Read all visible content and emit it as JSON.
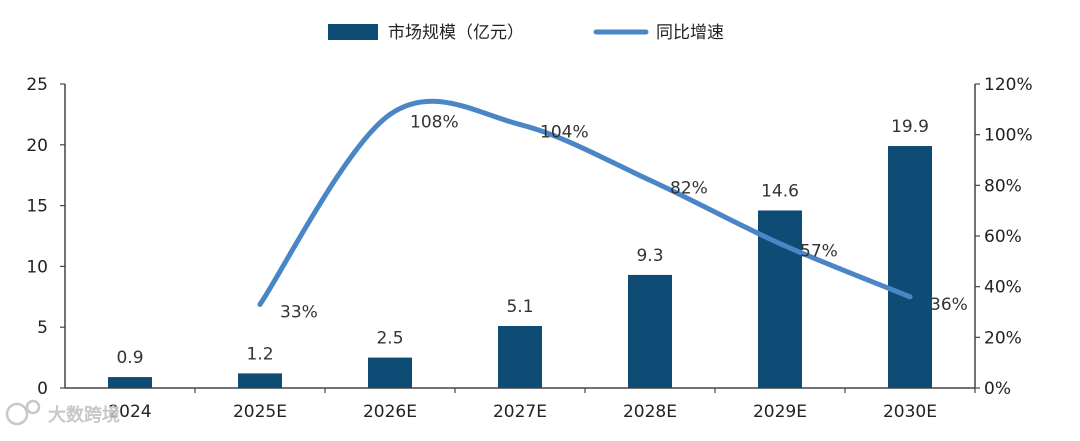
{
  "chart_data": {
    "type": "bar+line",
    "categories": [
      "2024",
      "2025E",
      "2026E",
      "2027E",
      "2028E",
      "2029E",
      "2030E"
    ],
    "series": [
      {
        "name": "市场规模（亿元）",
        "kind": "bar",
        "axis": "left",
        "values": [
          0.9,
          1.2,
          2.5,
          5.1,
          9.3,
          14.6,
          19.9
        ],
        "labels": [
          "0.9",
          "1.2",
          "2.5",
          "5.1",
          "9.3",
          "14.6",
          "19.9"
        ],
        "color": "#0f4c75"
      },
      {
        "name": "同比增速",
        "kind": "line",
        "axis": "right",
        "values": [
          null,
          33,
          108,
          104,
          82,
          57,
          36
        ],
        "labels": [
          "",
          "33%",
          "108%",
          "104%",
          "82%",
          "57%",
          "36%"
        ],
        "color": "#4a86c5"
      }
    ],
    "left_axis": {
      "ylim": [
        0,
        25
      ],
      "ticks": [
        0,
        5,
        10,
        15,
        20,
        25
      ],
      "tick_labels": [
        "0",
        "5",
        "10",
        "15",
        "20",
        "25"
      ]
    },
    "right_axis": {
      "ylim": [
        0,
        120
      ],
      "ticks": [
        0,
        20,
        40,
        60,
        80,
        100,
        120
      ],
      "tick_labels": [
        "0%",
        "20%",
        "40%",
        "60%",
        "80%",
        "100%",
        "120%"
      ]
    },
    "legend": {
      "position": "top-center"
    },
    "grid": false
  },
  "watermark": {
    "text": "大数跨境"
  }
}
